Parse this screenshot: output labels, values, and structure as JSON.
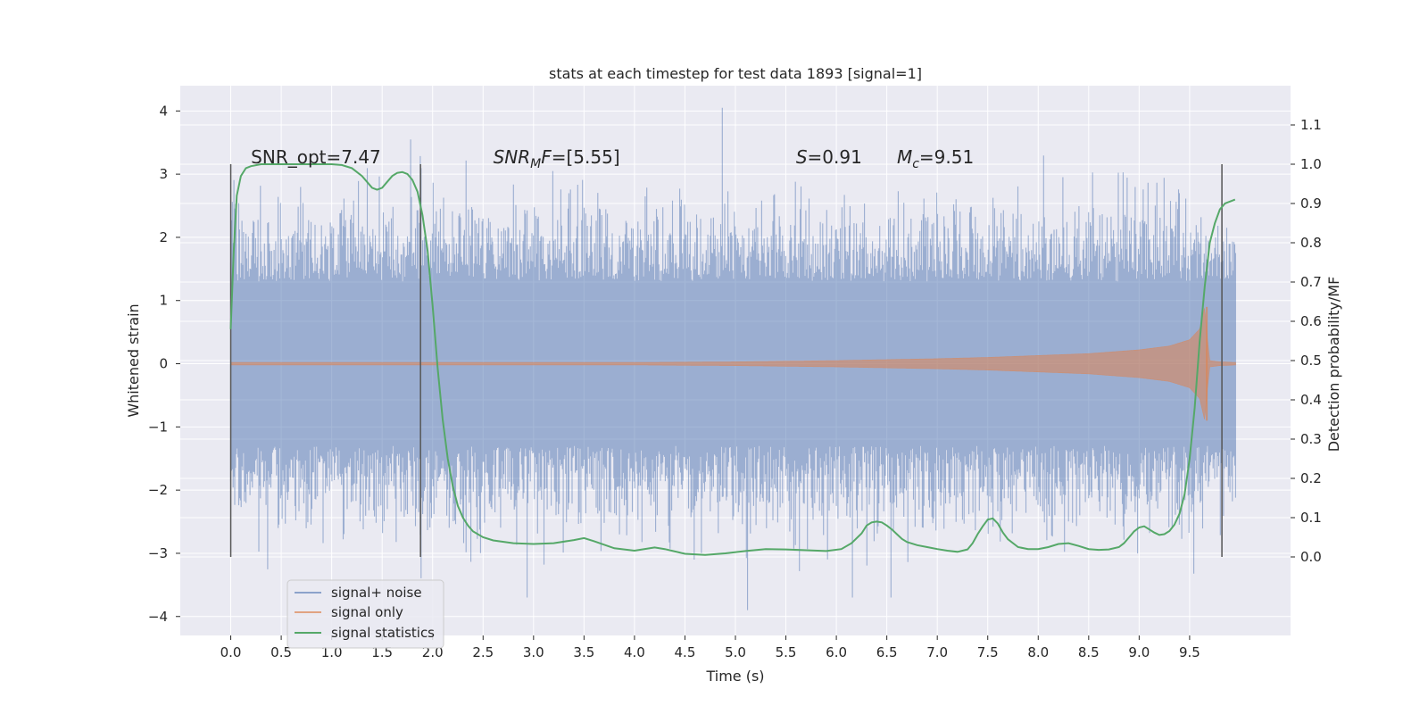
{
  "chart_data": {
    "type": "line",
    "title": "stats at each timestep for test data 1893 [signal=1]",
    "xlabel": "Time (s)",
    "ylabel": "Whitened strain",
    "y2label": "Detection probability/MF",
    "xlim": [
      -0.5,
      10.5
    ],
    "ylim": [
      -4.3,
      4.4
    ],
    "y2lim": [
      -0.2,
      1.2
    ],
    "xticks": [
      0.0,
      0.5,
      1.0,
      1.5,
      2.0,
      2.5,
      3.0,
      3.5,
      4.0,
      4.5,
      5.0,
      5.5,
      6.0,
      6.5,
      7.0,
      7.5,
      8.0,
      8.5,
      9.0,
      9.5
    ],
    "xtick_labels": [
      "0.0",
      "0.5",
      "1.0",
      "1.5",
      "2.0",
      "2.5",
      "3.0",
      "3.5",
      "4.0",
      "4.5",
      "5.0",
      "5.5",
      "6.0",
      "6.5",
      "7.0",
      "7.5",
      "8.0",
      "8.5",
      "9.0",
      "9.5"
    ],
    "yticks": [
      4,
      3,
      2,
      1,
      0,
      -1,
      -2,
      -3,
      -4
    ],
    "ytick_labels": [
      "4",
      "3",
      "2",
      "1",
      "0",
      "−1",
      "−2",
      "−3",
      "−4"
    ],
    "y2ticks": [
      1.1,
      1.0,
      0.9,
      0.8,
      0.7,
      0.6,
      0.5,
      0.4,
      0.3,
      0.2,
      0.1,
      0.0
    ],
    "y2tick_labels": [
      "1.1",
      "1.0",
      "0.9",
      "0.8",
      "0.7",
      "0.6",
      "0.5",
      "0.4",
      "0.3",
      "0.2",
      "0.1",
      "0.0"
    ],
    "grid": true,
    "legend_position": "lower-left",
    "colors": {
      "plot_background": "#eaeaf2",
      "grid": "#ffffff",
      "noise": "#4c72b0",
      "signal": "#dd8452",
      "statistic": "#55a868",
      "marker": "#555555"
    },
    "series": [
      {
        "name": "signal+ noise",
        "axis": "left",
        "description_samples": "dense noisy strain, amplitude mostly within about ±2, occasional peaks to about ±3.5",
        "x_range": [
          0.0,
          9.96
        ],
        "envelope_y": [
          -2.2,
          2.2
        ],
        "peak_max": 4.05,
        "peak_min": -3.9
      },
      {
        "name": "signal only",
        "axis": "left",
        "x": [
          0.0,
          4.0,
          5.0,
          6.0,
          7.0,
          7.5,
          8.0,
          8.5,
          9.0,
          9.3,
          9.5,
          9.6,
          9.65,
          9.67,
          9.7,
          9.8,
          9.96
        ],
        "envelope": [
          0.02,
          0.02,
          0.03,
          0.05,
          0.08,
          0.1,
          0.13,
          0.16,
          0.22,
          0.28,
          0.38,
          0.55,
          0.9,
          0.5,
          0.05,
          0.03,
          0.02
        ]
      },
      {
        "name": "signal statistics",
        "axis": "right",
        "x": [
          0.0,
          0.03,
          0.06,
          0.1,
          0.15,
          0.2,
          0.3,
          0.5,
          0.8,
          1.0,
          1.1,
          1.2,
          1.3,
          1.4,
          1.45,
          1.5,
          1.55,
          1.6,
          1.65,
          1.7,
          1.75,
          1.8,
          1.85,
          1.9,
          1.95,
          2.0,
          2.05,
          2.1,
          2.15,
          2.2,
          2.25,
          2.3,
          2.35,
          2.4,
          2.5,
          2.6,
          2.8,
          3.0,
          3.2,
          3.4,
          3.5,
          3.6,
          3.8,
          4.0,
          4.2,
          4.3,
          4.5,
          4.7,
          4.9,
          5.1,
          5.3,
          5.5,
          5.7,
          5.9,
          6.05,
          6.15,
          6.25,
          6.3,
          6.35,
          6.4,
          6.45,
          6.5,
          6.55,
          6.6,
          6.65,
          6.7,
          6.8,
          6.9,
          7.0,
          7.1,
          7.2,
          7.3,
          7.35,
          7.4,
          7.45,
          7.5,
          7.55,
          7.6,
          7.65,
          7.7,
          7.8,
          7.9,
          8.0,
          8.1,
          8.2,
          8.3,
          8.4,
          8.5,
          8.6,
          8.7,
          8.8,
          8.85,
          8.9,
          8.95,
          9.0,
          9.05,
          9.1,
          9.15,
          9.2,
          9.25,
          9.3,
          9.35,
          9.4,
          9.45,
          9.5,
          9.55,
          9.6,
          9.65,
          9.7,
          9.75,
          9.8,
          9.85,
          9.9,
          9.95
        ],
        "y": [
          0.58,
          0.78,
          0.92,
          0.97,
          0.99,
          0.995,
          1.0,
          1.0,
          1.0,
          1.0,
          0.998,
          0.99,
          0.97,
          0.94,
          0.935,
          0.94,
          0.955,
          0.97,
          0.978,
          0.98,
          0.975,
          0.96,
          0.93,
          0.87,
          0.78,
          0.64,
          0.48,
          0.35,
          0.25,
          0.18,
          0.13,
          0.1,
          0.08,
          0.065,
          0.05,
          0.042,
          0.035,
          0.033,
          0.035,
          0.043,
          0.048,
          0.04,
          0.022,
          0.016,
          0.024,
          0.02,
          0.008,
          0.005,
          0.009,
          0.015,
          0.02,
          0.019,
          0.017,
          0.015,
          0.02,
          0.035,
          0.06,
          0.08,
          0.088,
          0.09,
          0.088,
          0.08,
          0.07,
          0.058,
          0.046,
          0.038,
          0.03,
          0.025,
          0.02,
          0.016,
          0.013,
          0.019,
          0.035,
          0.058,
          0.078,
          0.095,
          0.098,
          0.085,
          0.062,
          0.045,
          0.025,
          0.02,
          0.02,
          0.025,
          0.033,
          0.035,
          0.028,
          0.02,
          0.018,
          0.019,
          0.025,
          0.035,
          0.05,
          0.065,
          0.075,
          0.078,
          0.07,
          0.062,
          0.056,
          0.058,
          0.066,
          0.082,
          0.11,
          0.16,
          0.25,
          0.38,
          0.55,
          0.69,
          0.8,
          0.85,
          0.885,
          0.9,
          0.905,
          0.91
        ]
      }
    ],
    "vertical_markers_x": [
      0.0,
      1.88,
      9.82
    ],
    "vertical_markers_span_right": [
      0.0,
      1.0
    ],
    "annotations": [
      {
        "text": "SNR_opt=7.47",
        "x": 0.2
      },
      {
        "text_base": "SNR",
        "text_sub": "M",
        "text_tail": "F=[5.55]",
        "x": 2.6
      },
      {
        "text_base": "S",
        "text_tail": "=0.91",
        "x": 5.6
      },
      {
        "text_base": "M",
        "text_sub": "c",
        "text_tail": "=9.51",
        "x": 6.6
      }
    ],
    "annotation_y_right": 1.0
  }
}
